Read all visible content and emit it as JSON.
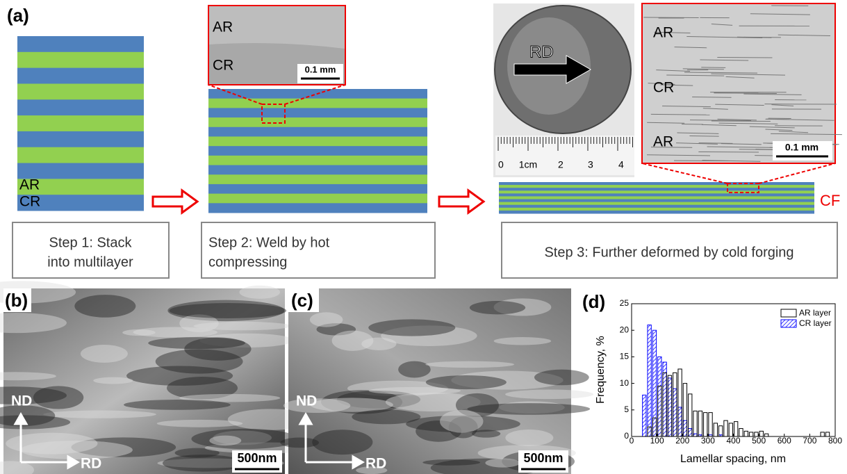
{
  "panel_a": {
    "label": "(a)",
    "stack_labels": [
      "AR",
      "CR"
    ],
    "inset_labels": [
      "AR",
      "CR"
    ],
    "inset_scale": "0.1 mm",
    "photo_arrow": "RD",
    "ruler_labels": [
      "0",
      "1cm",
      "2",
      "3",
      "4"
    ],
    "micro_labels": [
      "AR",
      "CR",
      "AR"
    ],
    "micro_scale": "0.1 mm",
    "cf_label": "CF",
    "steps": [
      [
        "Step 1: Stack",
        "into multilayer"
      ],
      [
        "Step 2: Weld by hot",
        "compressing"
      ],
      [
        "Step 3: Further deformed by cold forging"
      ]
    ]
  },
  "panel_b": {
    "label": "(b)",
    "axes": [
      "ND",
      "RD"
    ],
    "scale": "500nm"
  },
  "panel_c": {
    "label": "(c)",
    "axes": [
      "ND",
      "RD"
    ],
    "scale": "500nm"
  },
  "chart_data": {
    "type": "histogram",
    "label": "(d)",
    "x_label": "Lamellar spacing, nm",
    "y_label": "Frequency, %",
    "bins": [
      0,
      20,
      40,
      60,
      80,
      100,
      120,
      140,
      160,
      180,
      200,
      220,
      240,
      260,
      280,
      300,
      320,
      340,
      360,
      380,
      400,
      420,
      440,
      460,
      480,
      500,
      520,
      540,
      560,
      580,
      600,
      620,
      640,
      660,
      680,
      700,
      720,
      740,
      760,
      780,
      800
    ],
    "series": [
      {
        "name": "CR layer",
        "color": "#0000ff",
        "hatch": true,
        "values": [
          0,
          0,
          7.8,
          21,
          20,
          15,
          14,
          11,
          9,
          5.5,
          3,
          1.5,
          0.5,
          0.3,
          0,
          0.3,
          0,
          0.3,
          0,
          0,
          0,
          0,
          0,
          0,
          0,
          0,
          0,
          0,
          0,
          0,
          0,
          0,
          0,
          0,
          0,
          0,
          0,
          0,
          0,
          0
        ]
      },
      {
        "name": "AR layer",
        "color": "#000000",
        "hatch": false,
        "values": [
          0,
          0,
          0,
          1.8,
          3.5,
          9.5,
          12,
          11.5,
          12,
          12.7,
          10,
          8,
          4.8,
          4.8,
          4.5,
          4.5,
          2.5,
          2,
          3,
          2.5,
          2.8,
          1.5,
          1,
          0.8,
          0.8,
          1,
          0.5,
          0,
          0,
          0,
          0,
          0,
          0,
          0,
          0,
          0,
          0,
          0.8,
          0.8,
          0
        ]
      }
    ],
    "xlim": [
      0,
      800
    ],
    "ylim": [
      0,
      25
    ],
    "xticks": [
      0,
      100,
      200,
      300,
      400,
      500,
      600,
      700,
      800
    ],
    "yticks": [
      0,
      5,
      10,
      15,
      20,
      25
    ],
    "legend": "upper right"
  }
}
